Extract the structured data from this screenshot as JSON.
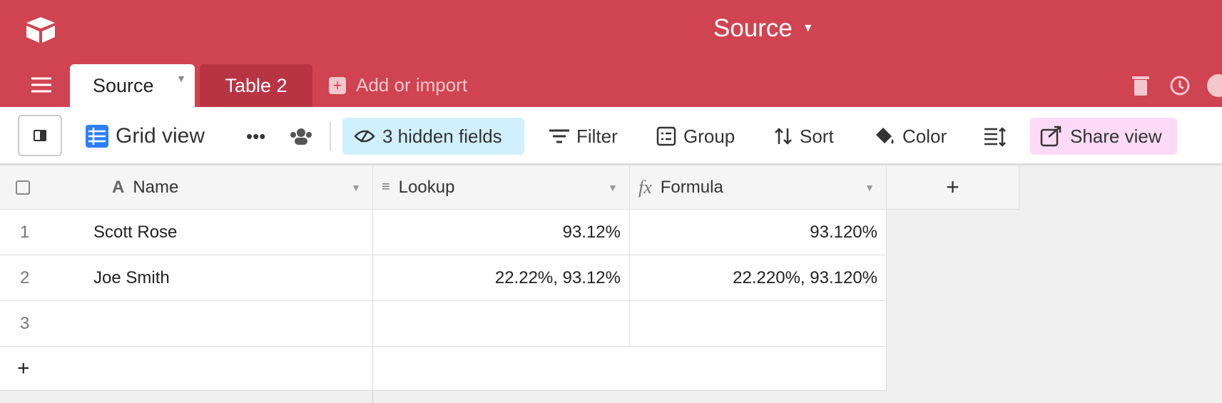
{
  "header": {
    "title": "Source"
  },
  "tabs": [
    "Source",
    "Table 2"
  ],
  "add_tab": "Add or import",
  "toolbar": {
    "view_name": "Grid view",
    "hidden_fields": "3 hidden fields",
    "filter": "Filter",
    "group": "Group",
    "sort": "Sort",
    "color": "Color",
    "share": "Share view"
  },
  "table": {
    "columns": [
      "Name",
      "Lookup",
      "Formula"
    ],
    "rows": [
      {
        "number": "1",
        "name": "Scott Rose",
        "lookup": "93.12%",
        "formula": "93.120%"
      },
      {
        "number": "2",
        "name": "Joe Smith",
        "lookup": "22.22%, 93.12%",
        "formula": "22.220%, 93.120%"
      },
      {
        "number": "3"
      }
    ]
  }
}
